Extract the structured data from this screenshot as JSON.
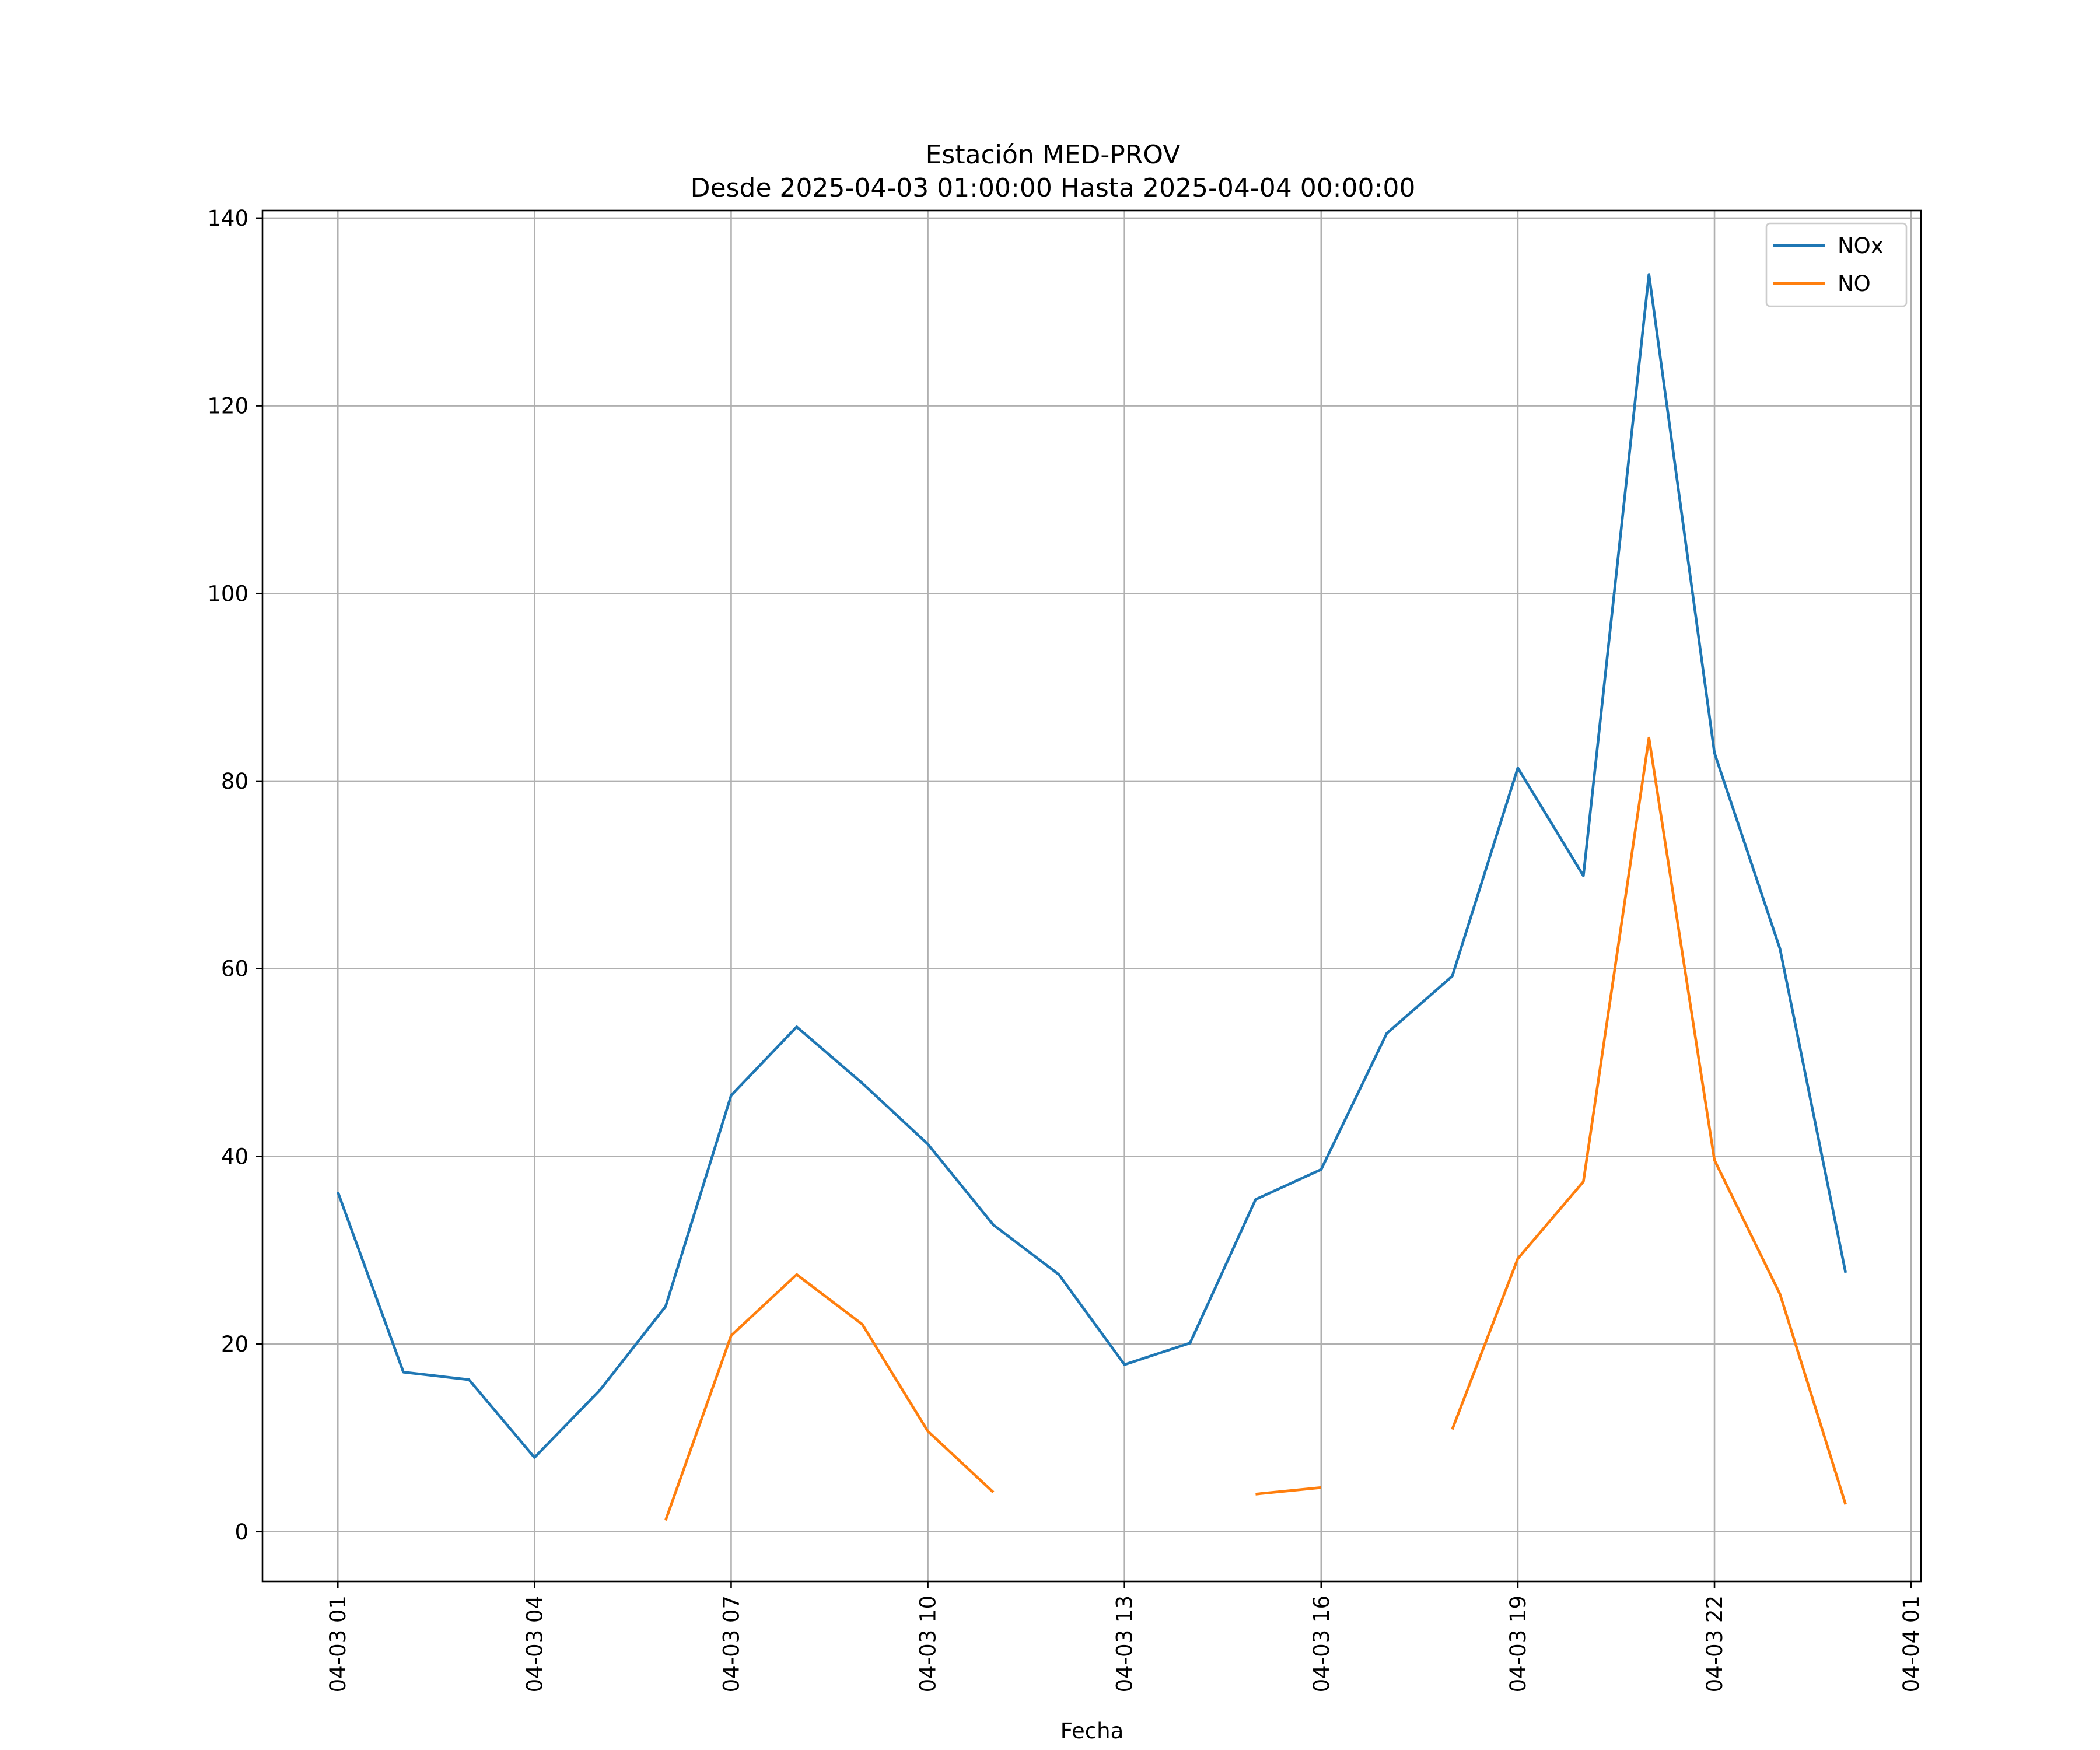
{
  "chart_data": {
    "type": "line",
    "title": "Estación MED-PROV",
    "subtitle": "Desde 2025-04-03 01:00:00 Hasta 2025-04-04 00:00:00",
    "xlabel": "Fecha",
    "ylabel": "",
    "x_hours": [
      1,
      2,
      3,
      4,
      5,
      6,
      7,
      8,
      9,
      10,
      11,
      12,
      13,
      14,
      15,
      16,
      17,
      18,
      19,
      20,
      21,
      22,
      23,
      24
    ],
    "xlim_hours": [
      -0.15,
      25.15
    ],
    "ylim": [
      -5.3,
      140.8
    ],
    "x_ticks": [
      {
        "hour": 1,
        "label": "04-03 01"
      },
      {
        "hour": 4,
        "label": "04-03 04"
      },
      {
        "hour": 7,
        "label": "04-03 07"
      },
      {
        "hour": 10,
        "label": "04-03 10"
      },
      {
        "hour": 13,
        "label": "04-03 13"
      },
      {
        "hour": 16,
        "label": "04-03 16"
      },
      {
        "hour": 19,
        "label": "04-03 19"
      },
      {
        "hour": 22,
        "label": "04-03 22"
      },
      {
        "hour": 25,
        "label": "04-04 01"
      }
    ],
    "y_ticks": [
      {
        "value": 0,
        "label": "0"
      },
      {
        "value": 20,
        "label": "20"
      },
      {
        "value": 40,
        "label": "40"
      },
      {
        "value": 60,
        "label": "60"
      },
      {
        "value": 80,
        "label": "80"
      },
      {
        "value": 100,
        "label": "100"
      },
      {
        "value": 120,
        "label": "120"
      },
      {
        "value": 140,
        "label": "140"
      }
    ],
    "grid": true,
    "legend_position": "top-right",
    "series": [
      {
        "name": "NOx",
        "color": "#1f77b4",
        "values": [
          36.2,
          17.0,
          16.2,
          7.9,
          15.1,
          24.0,
          46.5,
          53.8,
          47.8,
          41.3,
          32.7,
          27.4,
          17.8,
          20.1,
          35.4,
          38.6,
          53.1,
          59.2,
          81.4,
          69.9,
          134.0,
          83.0,
          62.1,
          27.6
        ]
      },
      {
        "name": "NO",
        "color": "#ff7f0e",
        "values": [
          null,
          null,
          null,
          null,
          null,
          1.2,
          20.9,
          27.4,
          22.1,
          10.7,
          4.2,
          null,
          null,
          null,
          4.0,
          4.7,
          null,
          10.9,
          29.1,
          37.3,
          84.6,
          39.6,
          25.3,
          2.9
        ]
      }
    ]
  }
}
